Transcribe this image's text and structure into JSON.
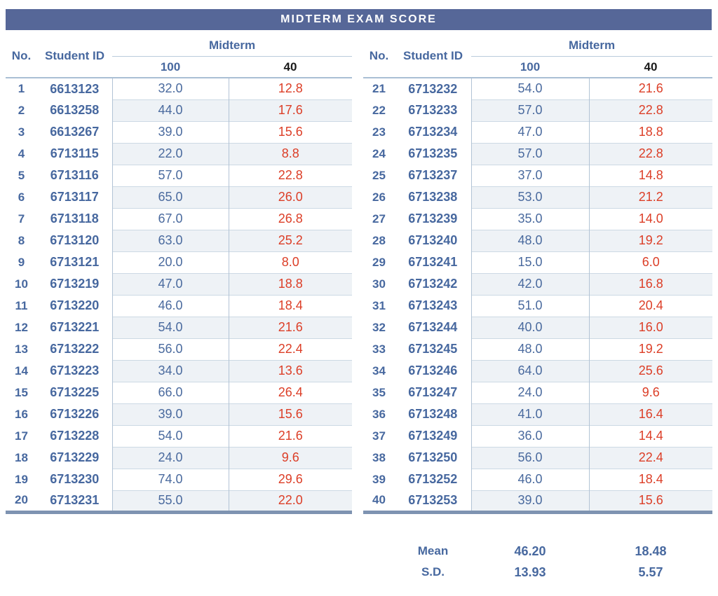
{
  "title": "MIDTERM EXAM SCORE",
  "columns": {
    "no": "No.",
    "student_id": "Student ID",
    "group": "Midterm",
    "full_score": "100",
    "scaled_score": "40"
  },
  "colors": {
    "title_bar_bg": "#566798",
    "title_text": "#ffffff",
    "blue_text": "#47689f",
    "score_blue": "#4a6a9e",
    "score_red": "#dc3e27",
    "row_shade": "#eef2f6",
    "thick_border": "#7e93b1",
    "grid_line": "#ccd9e4"
  },
  "tables": [
    {
      "rows": [
        {
          "no": "1",
          "student_id": "6613123",
          "score_100": "32.0",
          "score_40": "12.8"
        },
        {
          "no": "2",
          "student_id": "6613258",
          "score_100": "44.0",
          "score_40": "17.6"
        },
        {
          "no": "3",
          "student_id": "6613267",
          "score_100": "39.0",
          "score_40": "15.6"
        },
        {
          "no": "4",
          "student_id": "6713115",
          "score_100": "22.0",
          "score_40": "8.8"
        },
        {
          "no": "5",
          "student_id": "6713116",
          "score_100": "57.0",
          "score_40": "22.8"
        },
        {
          "no": "6",
          "student_id": "6713117",
          "score_100": "65.0",
          "score_40": "26.0"
        },
        {
          "no": "7",
          "student_id": "6713118",
          "score_100": "67.0",
          "score_40": "26.8"
        },
        {
          "no": "8",
          "student_id": "6713120",
          "score_100": "63.0",
          "score_40": "25.2"
        },
        {
          "no": "9",
          "student_id": "6713121",
          "score_100": "20.0",
          "score_40": "8.0"
        },
        {
          "no": "10",
          "student_id": "6713219",
          "score_100": "47.0",
          "score_40": "18.8"
        },
        {
          "no": "11",
          "student_id": "6713220",
          "score_100": "46.0",
          "score_40": "18.4"
        },
        {
          "no": "12",
          "student_id": "6713221",
          "score_100": "54.0",
          "score_40": "21.6"
        },
        {
          "no": "13",
          "student_id": "6713222",
          "score_100": "56.0",
          "score_40": "22.4"
        },
        {
          "no": "14",
          "student_id": "6713223",
          "score_100": "34.0",
          "score_40": "13.6"
        },
        {
          "no": "15",
          "student_id": "6713225",
          "score_100": "66.0",
          "score_40": "26.4"
        },
        {
          "no": "16",
          "student_id": "6713226",
          "score_100": "39.0",
          "score_40": "15.6"
        },
        {
          "no": "17",
          "student_id": "6713228",
          "score_100": "54.0",
          "score_40": "21.6"
        },
        {
          "no": "18",
          "student_id": "6713229",
          "score_100": "24.0",
          "score_40": "9.6"
        },
        {
          "no": "19",
          "student_id": "6713230",
          "score_100": "74.0",
          "score_40": "29.6"
        },
        {
          "no": "20",
          "student_id": "6713231",
          "score_100": "55.0",
          "score_40": "22.0"
        }
      ]
    },
    {
      "rows": [
        {
          "no": "21",
          "student_id": "6713232",
          "score_100": "54.0",
          "score_40": "21.6"
        },
        {
          "no": "22",
          "student_id": "6713233",
          "score_100": "57.0",
          "score_40": "22.8"
        },
        {
          "no": "23",
          "student_id": "6713234",
          "score_100": "47.0",
          "score_40": "18.8"
        },
        {
          "no": "24",
          "student_id": "6713235",
          "score_100": "57.0",
          "score_40": "22.8"
        },
        {
          "no": "25",
          "student_id": "6713237",
          "score_100": "37.0",
          "score_40": "14.8"
        },
        {
          "no": "26",
          "student_id": "6713238",
          "score_100": "53.0",
          "score_40": "21.2"
        },
        {
          "no": "27",
          "student_id": "6713239",
          "score_100": "35.0",
          "score_40": "14.0"
        },
        {
          "no": "28",
          "student_id": "6713240",
          "score_100": "48.0",
          "score_40": "19.2"
        },
        {
          "no": "29",
          "student_id": "6713241",
          "score_100": "15.0",
          "score_40": "6.0"
        },
        {
          "no": "30",
          "student_id": "6713242",
          "score_100": "42.0",
          "score_40": "16.8"
        },
        {
          "no": "31",
          "student_id": "6713243",
          "score_100": "51.0",
          "score_40": "20.4"
        },
        {
          "no": "32",
          "student_id": "6713244",
          "score_100": "40.0",
          "score_40": "16.0"
        },
        {
          "no": "33",
          "student_id": "6713245",
          "score_100": "48.0",
          "score_40": "19.2"
        },
        {
          "no": "34",
          "student_id": "6713246",
          "score_100": "64.0",
          "score_40": "25.6"
        },
        {
          "no": "35",
          "student_id": "6713247",
          "score_100": "24.0",
          "score_40": "9.6"
        },
        {
          "no": "36",
          "student_id": "6713248",
          "score_100": "41.0",
          "score_40": "16.4"
        },
        {
          "no": "37",
          "student_id": "6713249",
          "score_100": "36.0",
          "score_40": "14.4"
        },
        {
          "no": "38",
          "student_id": "6713250",
          "score_100": "56.0",
          "score_40": "22.4"
        },
        {
          "no": "39",
          "student_id": "6713252",
          "score_100": "46.0",
          "score_40": "18.4"
        },
        {
          "no": "40",
          "student_id": "6713253",
          "score_100": "39.0",
          "score_40": "15.6"
        }
      ]
    }
  ],
  "summary": {
    "mean_label": "Mean",
    "mean_100": "46.20",
    "mean_40": "18.48",
    "sd_label": "S.D.",
    "sd_100": "13.93",
    "sd_40": "5.57"
  }
}
